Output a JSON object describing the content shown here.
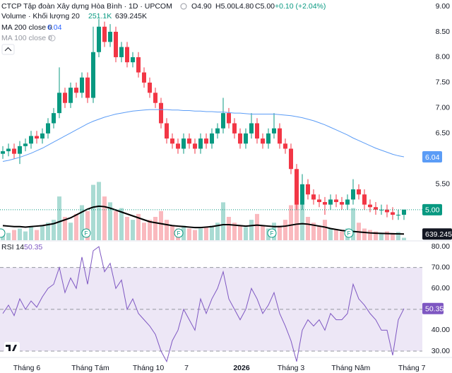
{
  "chart_data": {
    "type": "candlestick",
    "title": "CTCP Tập đoàn Xây dựng Hòa Bình · 1D · UPCOM",
    "ohlc_text": [
      "O4.90",
      "H5.00",
      "L4.80",
      "C5.00",
      "+0.10 (+2.04%)"
    ],
    "volume_legend": "Volume · Khối lượng 20",
    "volume_last_label": "251.1K",
    "volume_ma_label": "639.245K",
    "ma200_legend": "MA 200 close 0",
    "ma200_label": "6.04",
    "ma100_legend": "MA 100 close 0",
    "close_label": "5.00",
    "rsi_legend": "RSI 14",
    "rsi_label": "50.35",
    "colors": {
      "up": "#089981",
      "down": "#f23645",
      "ma200": "#5b9cf6",
      "volume_ma": "#000000",
      "rsi": "#7e57c2",
      "rsi_band": "#ede7f6"
    },
    "open": [
      6.1,
      6.15,
      6.2,
      6.1,
      6.25,
      6.3,
      6.45,
      6.4,
      6.5,
      6.7,
      6.9,
      7.3,
      7.1,
      7.4,
      7.3,
      7.6,
      7.2,
      8.1,
      8.6,
      8.3,
      8.5,
      8.0,
      8.2,
      7.9,
      8.0,
      7.7,
      7.5,
      7.3,
      7.1,
      6.7,
      6.4,
      6.3,
      6.2,
      6.4,
      6.3,
      6.2,
      6.4,
      6.3,
      6.5,
      6.6,
      6.9,
      6.7,
      6.5,
      6.3,
      6.5,
      6.7,
      6.4,
      6.3,
      6.5,
      6.6,
      6.3,
      6.2,
      5.8,
      5.1,
      5.5,
      5.3,
      5.2,
      5.15,
      5.1,
      5.2,
      5.15,
      5.1,
      5.2,
      5.4,
      5.3,
      5.1,
      5.05,
      5.0,
      5.0,
      4.95,
      4.9,
      4.9
    ],
    "high": [
      6.25,
      6.3,
      6.3,
      6.35,
      6.4,
      6.55,
      6.55,
      6.6,
      6.8,
      7.0,
      7.8,
      7.4,
      7.5,
      7.5,
      7.7,
      7.7,
      8.6,
      8.75,
      8.7,
      8.65,
      8.6,
      8.3,
      8.3,
      8.1,
      8.1,
      7.8,
      7.6,
      7.4,
      7.2,
      6.8,
      6.5,
      6.4,
      6.5,
      6.5,
      6.4,
      6.5,
      6.5,
      6.6,
      6.7,
      7.2,
      7.0,
      6.8,
      6.6,
      6.6,
      6.9,
      6.8,
      6.5,
      6.6,
      6.9,
      6.7,
      6.4,
      6.3,
      5.9,
      5.7,
      5.6,
      5.4,
      5.3,
      5.25,
      5.3,
      5.3,
      5.25,
      5.3,
      5.6,
      5.5,
      5.4,
      5.2,
      5.15,
      5.1,
      5.1,
      5.05,
      5.0,
      5.0
    ],
    "low": [
      6.0,
      6.05,
      6.0,
      5.9,
      6.15,
      6.2,
      6.3,
      6.3,
      6.4,
      6.6,
      6.8,
      7.0,
      7.0,
      7.2,
      7.2,
      7.1,
      7.1,
      8.0,
      8.2,
      8.2,
      7.9,
      7.9,
      7.8,
      7.8,
      7.6,
      7.4,
      7.2,
      7.0,
      6.6,
      6.3,
      6.2,
      6.1,
      6.1,
      6.2,
      6.1,
      6.1,
      6.2,
      6.2,
      6.4,
      6.5,
      6.6,
      6.4,
      6.2,
      6.2,
      6.4,
      6.3,
      6.2,
      6.2,
      6.4,
      6.2,
      6.1,
      5.7,
      5.0,
      5.0,
      5.2,
      5.1,
      5.05,
      4.9,
      5.0,
      5.05,
      5.0,
      5.0,
      5.1,
      5.2,
      5.0,
      4.95,
      4.9,
      4.9,
      4.85,
      4.8,
      4.8,
      4.8
    ],
    "close": [
      6.15,
      6.2,
      6.1,
      6.25,
      6.3,
      6.45,
      6.4,
      6.5,
      6.7,
      6.9,
      7.3,
      7.1,
      7.4,
      7.3,
      7.6,
      7.2,
      8.1,
      8.6,
      8.3,
      8.5,
      8.0,
      8.2,
      7.9,
      8.0,
      7.7,
      7.5,
      7.3,
      7.1,
      6.7,
      6.4,
      6.3,
      6.2,
      6.4,
      6.3,
      6.2,
      6.4,
      6.3,
      6.5,
      6.6,
      6.9,
      6.7,
      6.5,
      6.3,
      6.5,
      6.7,
      6.4,
      6.3,
      6.5,
      6.6,
      6.3,
      6.2,
      5.8,
      5.1,
      5.5,
      5.3,
      5.2,
      5.15,
      5.1,
      5.2,
      5.15,
      5.1,
      5.2,
      5.4,
      5.3,
      5.1,
      5.05,
      5.0,
      5.0,
      4.95,
      4.9,
      4.9,
      5.0
    ],
    "volume": [
      900000,
      750000,
      1050000,
      1200000,
      900000,
      1350000,
      1050000,
      1500000,
      1800000,
      2100000,
      4500000,
      2400000,
      1800000,
      2700000,
      3600000,
      3000000,
      5700000,
      6000000,
      4500000,
      3900000,
      3000000,
      3300000,
      2400000,
      2100000,
      2700000,
      1800000,
      2100000,
      2400000,
      3000000,
      2100000,
      1500000,
      1200000,
      1500000,
      1200000,
      1050000,
      1200000,
      1350000,
      1500000,
      1800000,
      3900000,
      2400000,
      1800000,
      1500000,
      1350000,
      2100000,
      2700000,
      1500000,
      1200000,
      1800000,
      1500000,
      2100000,
      3600000,
      4800000,
      3900000,
      2400000,
      1800000,
      1500000,
      2100000,
      1200000,
      1050000,
      900000,
      1200000,
      3300000,
      1800000,
      1200000,
      1050000,
      900000,
      750000,
      900000,
      750000,
      840000,
      251100
    ],
    "volume_ma": [
      1500000,
      1450000,
      1400000,
      1400000,
      1350000,
      1400000,
      1450000,
      1500000,
      1600000,
      1700000,
      1900000,
      2100000,
      2300000,
      2600000,
      2900000,
      3200000,
      3400000,
      3500000,
      3450000,
      3300000,
      3100000,
      2900000,
      2700000,
      2500000,
      2300000,
      2100000,
      1900000,
      1800000,
      1700000,
      1600000,
      1500000,
      1450000,
      1400000,
      1350000,
      1300000,
      1300000,
      1350000,
      1400000,
      1500000,
      1600000,
      1600000,
      1550000,
      1500000,
      1450000,
      1500000,
      1550000,
      1500000,
      1450000,
      1400000,
      1400000,
      1450000,
      1550000,
      1650000,
      1700000,
      1650000,
      1550000,
      1450000,
      1350000,
      1200000,
      1100000,
      1000000,
      950000,
      900000,
      850000,
      800000,
      750000,
      720000,
      700000,
      680000,
      660000,
      650000,
      639245
    ],
    "ma200": [
      5.95,
      5.97,
      6.0,
      6.03,
      6.07,
      6.11,
      6.16,
      6.21,
      6.27,
      6.33,
      6.39,
      6.45,
      6.51,
      6.57,
      6.63,
      6.69,
      6.74,
      6.78,
      6.82,
      6.85,
      6.88,
      6.9,
      6.92,
      6.94,
      6.95,
      6.96,
      6.97,
      6.97,
      6.97,
      6.97,
      6.96,
      6.96,
      6.95,
      6.95,
      6.94,
      6.94,
      6.93,
      6.93,
      6.92,
      6.92,
      6.91,
      6.9,
      6.9,
      6.89,
      6.88,
      6.88,
      6.88,
      6.88,
      6.88,
      6.87,
      6.86,
      6.85,
      6.83,
      6.81,
      6.78,
      6.75,
      6.71,
      6.67,
      6.62,
      6.57,
      6.52,
      6.47,
      6.41,
      6.36,
      6.31,
      6.26,
      6.21,
      6.17,
      6.13,
      6.09,
      6.06,
      6.04
    ],
    "rsi": [
      48,
      52,
      47,
      55,
      50,
      54,
      51,
      56,
      60,
      62,
      70,
      58,
      65,
      60,
      75,
      62,
      78,
      80,
      68,
      72,
      60,
      64,
      50,
      55,
      48,
      45,
      42,
      38,
      30,
      25,
      35,
      40,
      50,
      45,
      40,
      55,
      48,
      55,
      60,
      68,
      55,
      50,
      45,
      50,
      60,
      55,
      48,
      52,
      58,
      48,
      42,
      35,
      25,
      40,
      45,
      42,
      45,
      40,
      48,
      45,
      45,
      48,
      62,
      55,
      52,
      48,
      45,
      40,
      40,
      28,
      45,
      50.35
    ],
    "ylim": [
      4.4,
      9.125
    ],
    "yticks": [
      {
        "value": 9,
        "label": "9.00"
      },
      {
        "value": 8.5,
        "label": "8.50"
      },
      {
        "value": 8,
        "label": "8.00"
      },
      {
        "value": 7.5,
        "label": "7.50"
      },
      {
        "value": 7,
        "label": "7.00"
      },
      {
        "value": 6.5,
        "label": "6.50"
      },
      {
        "value": 5.5,
        "label": "5.50"
      }
    ],
    "volume_lim": [
      0,
      8000000
    ],
    "rsi_lim": [
      27.3,
      82.4
    ],
    "rsi_ticks": [
      {
        "value": 80,
        "label": "80.00"
      },
      {
        "value": 70,
        "label": "70.00"
      },
      {
        "value": 60,
        "label": "60.00"
      },
      {
        "value": 40,
        "label": "40.00"
      },
      {
        "value": 30,
        "label": "30.00"
      }
    ],
    "rsi_band": [
      30,
      70
    ],
    "rsi_mid": 50,
    "xticks": [
      {
        "value": 4.25,
        "label": "Tháng 6"
      },
      {
        "value": 15.5,
        "label": "Tháng Tám"
      },
      {
        "value": 25.75,
        "label": "Tháng 10"
      },
      {
        "value": 32.5,
        "label": "7"
      },
      {
        "value": 42.25,
        "label": "2026"
      },
      {
        "value": 51,
        "label": "Tháng 3"
      },
      {
        "value": 61.6,
        "label": "Tháng Năm"
      },
      {
        "value": 72.4,
        "label": "Tháng 7"
      }
    ]
  }
}
